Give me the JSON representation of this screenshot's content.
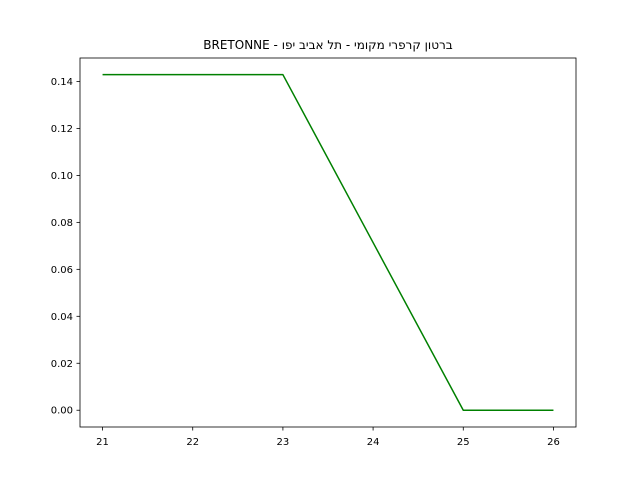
{
  "chart_data": {
    "type": "line",
    "title": "BRETONNE - ברטון קרפרי מקומי - תל אביב יפו",
    "xlabel": "",
    "ylabel": "",
    "x": [
      21,
      22,
      23,
      24,
      25,
      26
    ],
    "x_ticks": [
      "21",
      "22",
      "23",
      "24",
      "25",
      "26"
    ],
    "y_ticks": [
      "0.00",
      "0.02",
      "0.04",
      "0.06",
      "0.08",
      "0.10",
      "0.12",
      "0.14"
    ],
    "xlim": [
      20.75,
      26.25
    ],
    "ylim": [
      -0.00714,
      0.15
    ],
    "grid": false,
    "series": [
      {
        "values": [
          0.1429,
          0.1429,
          0.1429,
          0.0714,
          0.0,
          0.0
        ],
        "color": "#008000"
      }
    ]
  }
}
